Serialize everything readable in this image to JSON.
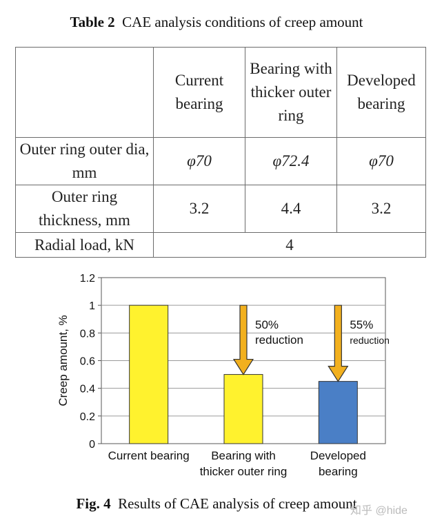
{
  "table": {
    "number": "Table 2",
    "title": "CAE analysis conditions of creep amount",
    "headers": [
      "",
      "Current bearing",
      "Bearing with thicker outer ring",
      "Developed bearing"
    ],
    "rows": [
      {
        "label": "Outer ring outer dia, mm",
        "values": [
          "φ70",
          "φ72.4",
          "φ70"
        ]
      },
      {
        "label": "Outer ring thickness, mm",
        "values": [
          "3.2",
          "4.4",
          "3.2"
        ]
      },
      {
        "label": "Radial load, kN",
        "values": [
          "4"
        ]
      }
    ]
  },
  "figure": {
    "number": "Fig. 4",
    "caption": "Results of CAE analysis of creep amount",
    "watermark": "知乎 @hide"
  },
  "chart_data": {
    "type": "bar",
    "categories": [
      "Current bearing",
      "Bearing with thicker outer ring",
      "Developed bearing"
    ],
    "category_lines": [
      [
        "Current bearing"
      ],
      [
        "Bearing with",
        "thicker outer ring"
      ],
      [
        "Developed",
        "bearing"
      ]
    ],
    "values": [
      1.0,
      0.5,
      0.45
    ],
    "bar_colors": [
      "#fff22e",
      "#fff22e",
      "#4a7fc6"
    ],
    "ylabel": "Creep amount, %",
    "xlabel": "",
    "ylim": [
      0,
      1.2
    ],
    "yticks": [
      0,
      0.2,
      0.4,
      0.6,
      0.8,
      1,
      1.2
    ],
    "ytick_labels": [
      "0",
      "0.2",
      "0.4",
      "0.6",
      "0.8",
      "1",
      "1.2"
    ],
    "grid": true,
    "annotations": [
      {
        "category_index": 1,
        "lines": [
          "50%",
          "reduction"
        ],
        "arrow_from": 1.0,
        "arrow_to": 0.5
      },
      {
        "category_index": 2,
        "lines": [
          "55%",
          "reduction"
        ],
        "arrow_from": 1.0,
        "arrow_to": 0.45
      }
    ],
    "arrow_color": "#f2b01e"
  }
}
